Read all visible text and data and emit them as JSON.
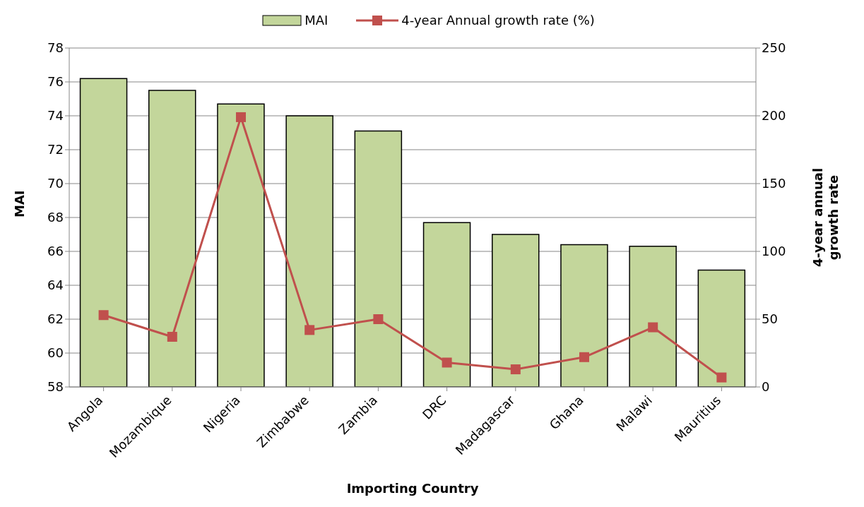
{
  "chart_data": {
    "type": "bar",
    "xlabel": "Importing Country",
    "ylabel": "MAI",
    "y2label": "4-year annual growth rate",
    "categories": [
      "Angola",
      "Mozambique",
      "Nigeria",
      "Zimbabwe",
      "Zambia",
      "DRC",
      "Madagascar",
      "Ghana",
      "Malawi",
      "Mauritius"
    ],
    "series": [
      {
        "name": "MAI",
        "color": "#c3d69b",
        "values": [
          76.2,
          75.5,
          74.7,
          74.0,
          73.1,
          67.7,
          67.0,
          66.4,
          66.3,
          64.9
        ]
      },
      {
        "name": "4-year Annual growth rate (%)",
        "type": "line",
        "axis": "y2",
        "color": "#c0504d",
        "marker": "square",
        "values": [
          53,
          37,
          199,
          42,
          50,
          18,
          13,
          22,
          44,
          7
        ]
      }
    ],
    "ylim": [
      58,
      78
    ],
    "yticks": [
      58,
      60,
      62,
      64,
      66,
      68,
      70,
      72,
      74,
      76,
      78
    ],
    "y2lim": [
      0,
      250
    ],
    "y2ticks": [
      0,
      50,
      100,
      150,
      200,
      250
    ],
    "grid": "y",
    "legend": "top"
  }
}
